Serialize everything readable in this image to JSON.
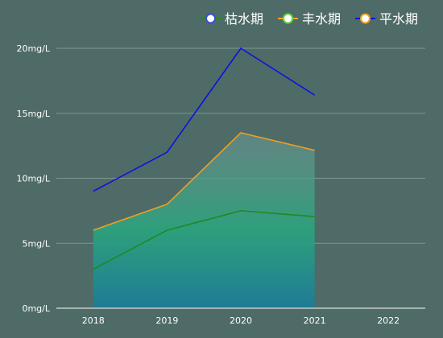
{
  "chart_data": {
    "type": "area",
    "categories": [
      "2018",
      "2019",
      "2020",
      "2021",
      "2022"
    ],
    "y_tick_labels": [
      "0mg/L",
      "5mg/L",
      "10mg/L",
      "15mg/L",
      "20mg/L"
    ],
    "ylim": [
      0,
      20
    ],
    "grid": true,
    "legend_position": "top-right",
    "series": [
      {
        "name": "枯水期",
        "color": "#1f8a1f",
        "values": [
          3.0,
          6.0,
          7.5,
          7.05,
          null
        ]
      },
      {
        "name": "丰水期",
        "color": "#f0a020",
        "values": [
          6.0,
          8.0,
          13.5,
          12.15,
          null
        ]
      },
      {
        "name": "平水期",
        "color": "#1010e0",
        "values": [
          9.0,
          12.0,
          20.0,
          16.4,
          null
        ]
      }
    ]
  }
}
